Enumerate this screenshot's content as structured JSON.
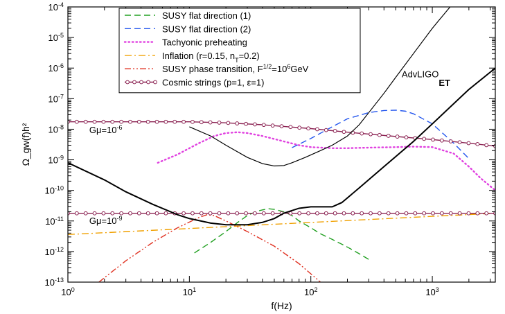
{
  "chart_data": {
    "type": "line",
    "title": "",
    "xlabel": "f(Hz)",
    "ylabel": "Ω_gw(f)h²",
    "x_scale": "log",
    "y_scale": "log",
    "xlim": [
      1,
      3300
    ],
    "ylim": [
      1e-13,
      0.0001
    ],
    "grid": false,
    "legend_placement": "top-center",
    "x_ticks": [
      {
        "value": 1,
        "base": "10",
        "exp": "0"
      },
      {
        "value": 10,
        "base": "10",
        "exp": "1"
      },
      {
        "value": 100,
        "base": "10",
        "exp": "2"
      },
      {
        "value": 1000,
        "base": "10",
        "exp": "3"
      }
    ],
    "y_ticks": [
      {
        "value": 1e-13,
        "base": "10",
        "exp": "-13"
      },
      {
        "value": 1e-12,
        "base": "10",
        "exp": "-12"
      },
      {
        "value": 1e-11,
        "base": "10",
        "exp": "-11"
      },
      {
        "value": 1e-10,
        "base": "10",
        "exp": "-10"
      },
      {
        "value": 1e-09,
        "base": "10",
        "exp": "-9"
      },
      {
        "value": 1e-08,
        "base": "10",
        "exp": "-8"
      },
      {
        "value": 1e-07,
        "base": "10",
        "exp": "-7"
      },
      {
        "value": 1e-06,
        "base": "10",
        "exp": "-6"
      },
      {
        "value": 1e-05,
        "base": "10",
        "exp": "-5"
      },
      {
        "value": 0.0001,
        "base": "10",
        "exp": "-4"
      }
    ],
    "series": [
      {
        "name": "SUSY flat direction (1)",
        "legend_parts": [
          "SUSY flat direction (1)"
        ],
        "color": "#22a022",
        "style": "dashed",
        "x": [
          11,
          15,
          20,
          25,
          30,
          35,
          40,
          45,
          50,
          60,
          70,
          80,
          100,
          120,
          150,
          200,
          250,
          300
        ],
        "y": [
          9e-13,
          2e-12,
          4.5e-12,
          9e-12,
          1.5e-11,
          2e-11,
          2.3e-11,
          2.5e-11,
          2.4e-11,
          2e-11,
          1.5e-11,
          1e-11,
          6e-12,
          3.8e-12,
          2.5e-12,
          1.4e-12,
          8.5e-13,
          5.5e-13
        ]
      },
      {
        "name": "SUSY flat direction (2)",
        "legend_parts": [
          "SUSY flat direction (2)"
        ],
        "color": "#2255ee",
        "style": "dashed",
        "x": [
          70,
          100,
          150,
          200,
          300,
          400,
          500,
          600,
          700,
          1000,
          1500,
          2000
        ],
        "y": [
          2.5e-09,
          5e-09,
          1.2e-08,
          2.2e-08,
          3.5e-08,
          4.1e-08,
          4.2e-08,
          3.9e-08,
          3.2e-08,
          1.5e-08,
          3.5e-09,
          1.1e-09
        ]
      },
      {
        "name": "Tachyonic preheating",
        "legend_parts": [
          "Tachyonic preheating"
        ],
        "color": "#e040e0",
        "style": "dotted",
        "x": [
          5.5,
          8,
          12,
          16,
          20,
          25,
          30,
          40,
          60,
          80,
          100,
          150,
          200,
          300,
          500,
          700,
          1000,
          1500,
          2000,
          2500,
          3300
        ],
        "y": [
          8e-10,
          1.5e-09,
          3.5e-09,
          6e-09,
          7.5e-09,
          8e-09,
          7.5e-09,
          6e-09,
          4e-09,
          3e-09,
          2.6e-09,
          2.4e-09,
          2.4e-09,
          2.5e-09,
          2.6e-09,
          2.7e-09,
          2.6e-09,
          1.6e-09,
          6e-10,
          2.5e-10,
          1e-10
        ]
      },
      {
        "name": "Inflation (r=0.15, n_T=0.2)",
        "legend_parts": [
          "Inflation (r=0.15, n",
          "T",
          "=0.2)"
        ],
        "color": "#f0a000",
        "style": "dashdot",
        "x": [
          1,
          3300
        ],
        "y": [
          3.6e-12,
          1.79e-11
        ]
      },
      {
        "name": "SUSY phase transition, F^1/2=10^6GeV",
        "legend_parts": [
          "SUSY phase transition, F",
          "1/2",
          "=10",
          "6",
          "GeV"
        ],
        "color": "#e03020",
        "style": "dashdotdot",
        "x": [
          1.8,
          3,
          5,
          8,
          12,
          14,
          16,
          20,
          30,
          50,
          80,
          120
        ],
        "y": [
          1e-13,
          5e-13,
          2e-12,
          6e-12,
          1.3e-11,
          1.6e-11,
          1.5e-11,
          1e-11,
          4.5e-12,
          1.5e-12,
          4e-13,
          1e-13
        ]
      },
      {
        "name": "Cosmic strings (p=1, ε=1)",
        "legend_parts": [
          "Cosmic strings (p=1, ε=1)"
        ],
        "color": "#8b2252",
        "style": "solid",
        "marker": "circle",
        "x": [
          1,
          3,
          10,
          20,
          40,
          100,
          200,
          500,
          1000,
          2000,
          3300
        ],
        "y": [
          1.75e-08,
          1.75e-08,
          1.75e-08,
          1.62e-08,
          1.4e-08,
          1.05e-08,
          8e-09,
          5.8e-09,
          4.6e-09,
          3.5e-09,
          2.8e-09
        ]
      },
      {
        "name": "Cosmic strings Gμ=10^-9",
        "legend_parts": [],
        "color": "#8b2252",
        "style": "solid",
        "marker": "circle",
        "x": [
          1,
          3300
        ],
        "y": [
          1.78e-11,
          1.78e-11
        ]
      },
      {
        "name": "AdvLIGO",
        "legend_parts": [],
        "color": "#000000",
        "style": "solid",
        "width": 1.2,
        "x": [
          10,
          15,
          20,
          30,
          40,
          50,
          60,
          70,
          90,
          120,
          150,
          200,
          250,
          300,
          400,
          500,
          700,
          1000,
          1400
        ],
        "y": [
          1.2e-08,
          6e-09,
          3e-09,
          1.2e-09,
          7.5e-10,
          6.3e-10,
          6.5e-10,
          8e-10,
          1.2e-09,
          2e-09,
          3e-09,
          6e-09,
          1.4e-08,
          3.5e-08,
          1.5e-07,
          5e-07,
          3e-06,
          2e-05,
          0.0001
        ]
      },
      {
        "name": "ET",
        "legend_parts": [],
        "color": "#000000",
        "style": "solid",
        "width": 2,
        "x": [
          1,
          2,
          3,
          5,
          8,
          10,
          15,
          20,
          30,
          40,
          50,
          60,
          80,
          100,
          120,
          150,
          180,
          250,
          400,
          700,
          1000,
          2000,
          3300
        ],
        "y": [
          8e-10,
          2.2e-10,
          9e-11,
          3.5e-11,
          1.6e-11,
          1.2e-11,
          8.5e-12,
          7.5e-12,
          7.5e-12,
          9e-12,
          1.2e-11,
          1.8e-11,
          2.6e-11,
          2.9e-11,
          2.9e-11,
          2.9e-11,
          4e-11,
          1.2e-10,
          6e-10,
          4e-09,
          1.5e-08,
          2e-07,
          1e-06
        ]
      }
    ],
    "annotations": [
      {
        "id": "gmu6",
        "parts": [
          "Gμ=10",
          "-6"
        ],
        "x": 1.5,
        "y": 7.5e-09
      },
      {
        "id": "gmu9",
        "parts": [
          "Gμ=10",
          "-9"
        ],
        "x": 1.5,
        "y": 8e-12
      },
      {
        "id": "advligo",
        "parts": [
          "AdvLIGO"
        ],
        "x": 560,
        "y": 5e-07
      },
      {
        "id": "et",
        "parts": [
          "ET"
        ],
        "x": 1130,
        "y": 2.6e-07
      }
    ]
  }
}
